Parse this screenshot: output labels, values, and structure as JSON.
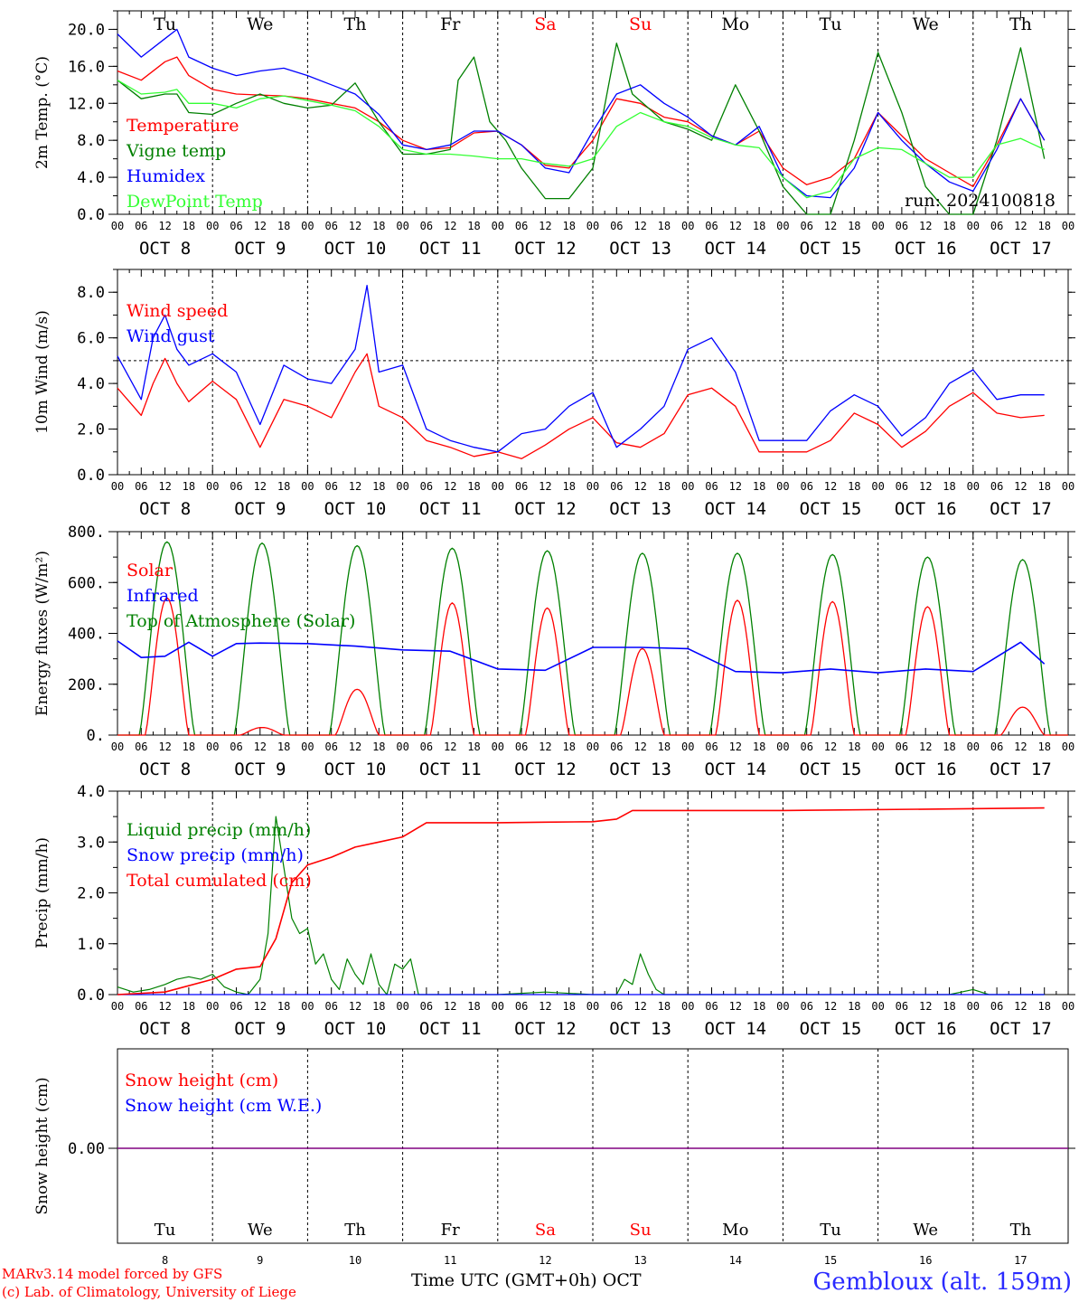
{
  "chart_data": [
    {
      "type": "line",
      "panel": "temperature",
      "ylabel": "2m Temp. (°C)",
      "ylim": [
        0,
        22
      ],
      "yticks": [
        "0.0",
        "4.0",
        "8.0",
        "12.0",
        "16.0",
        "20.0"
      ],
      "ytick_values": [
        0,
        4,
        8,
        12,
        16,
        20
      ],
      "x_unit": "hours from 2024-10-08 00 UTC",
      "annotation": "run: 2024100818",
      "series": [
        {
          "name": "Temperature",
          "color": "#ff0000",
          "x": [
            0,
            6,
            12,
            15,
            18,
            24,
            30,
            36,
            42,
            48,
            54,
            60,
            66,
            72,
            78,
            84,
            90,
            96,
            102,
            108,
            114,
            120,
            126,
            132,
            138,
            144,
            150,
            156,
            162,
            168,
            174,
            180,
            186,
            192,
            198,
            204,
            210,
            216,
            222,
            228,
            234
          ],
          "y": [
            15.5,
            14.5,
            16.5,
            17,
            15,
            13.5,
            13,
            12.9,
            12.8,
            12.5,
            12,
            11.5,
            10,
            8,
            7,
            7.2,
            8.8,
            9,
            7.5,
            5.3,
            5,
            8,
            12.5,
            12,
            10.5,
            10,
            8.5,
            7.5,
            9,
            5,
            3.2,
            4,
            6,
            11,
            8.5,
            6,
            4.5,
            3.0,
            7.5,
            12.5,
            8
          ]
        },
        {
          "name": "Vigne temp",
          "color": "#008000",
          "x": [
            0,
            6,
            12,
            15,
            18,
            24,
            30,
            36,
            42,
            48,
            54,
            60,
            66,
            72,
            78,
            84,
            86,
            90,
            94,
            98,
            102,
            108,
            114,
            120,
            126,
            130,
            138,
            144,
            150,
            156,
            162,
            168,
            174,
            180,
            186,
            192,
            198,
            204,
            210,
            216,
            222,
            228,
            234
          ],
          "y": [
            14.5,
            12.5,
            13,
            13,
            11,
            10.8,
            12,
            13,
            12,
            11.5,
            11.8,
            14.2,
            10,
            6.5,
            6.5,
            7,
            14.5,
            17,
            10,
            8,
            5,
            1.7,
            1.7,
            5,
            18.5,
            13,
            10,
            9.2,
            8,
            14,
            9,
            3,
            0,
            0,
            8,
            17.5,
            11,
            3,
            0,
            0,
            8,
            18,
            6
          ]
        },
        {
          "name": "Humidex",
          "color": "#0000ff",
          "x": [
            0,
            6,
            12,
            15,
            18,
            24,
            30,
            36,
            42,
            48,
            54,
            60,
            66,
            72,
            78,
            84,
            90,
            96,
            102,
            108,
            114,
            120,
            126,
            132,
            138,
            144,
            150,
            156,
            162,
            168,
            174,
            180,
            186,
            192,
            198,
            204,
            210,
            216,
            222,
            228,
            234
          ],
          "y": [
            19.5,
            17,
            19,
            20,
            17,
            15.8,
            15,
            15.5,
            15.8,
            15,
            14,
            13,
            10.8,
            7.5,
            7,
            7.5,
            9,
            9,
            7.5,
            5,
            4.5,
            9,
            13,
            14,
            12,
            10.5,
            8.5,
            7.5,
            9.5,
            4,
            2,
            1.8,
            5,
            11,
            8,
            5.5,
            3.5,
            2.5,
            7,
            12.5,
            8
          ]
        },
        {
          "name": "DewPoint Temp",
          "color": "#33ff33",
          "x": [
            0,
            6,
            12,
            15,
            18,
            24,
            30,
            36,
            42,
            48,
            54,
            60,
            66,
            72,
            78,
            84,
            90,
            96,
            102,
            108,
            114,
            120,
            126,
            132,
            138,
            144,
            150,
            156,
            162,
            168,
            174,
            180,
            186,
            192,
            198,
            204,
            210,
            216,
            222,
            228,
            234
          ],
          "y": [
            14.5,
            13,
            13.2,
            13.5,
            12,
            12,
            11.5,
            12.5,
            12.8,
            12.3,
            11.8,
            11.2,
            9.5,
            7,
            6.5,
            6.5,
            6.3,
            6,
            6,
            5.5,
            5.2,
            6,
            9.5,
            11,
            10,
            9.5,
            8.3,
            7.5,
            7.2,
            4,
            1.8,
            2.5,
            6,
            7.2,
            7,
            5.5,
            4,
            4,
            7.5,
            8.2,
            7
          ]
        }
      ]
    },
    {
      "type": "line",
      "panel": "wind",
      "ylabel": "10m Wind (m/s)",
      "ylim": [
        0,
        9
      ],
      "yticks": [
        "0.0",
        "2.0",
        "4.0",
        "6.0",
        "8.0"
      ],
      "ytick_values": [
        0,
        2,
        4,
        6,
        8
      ],
      "reference_line": 5,
      "series": [
        {
          "name": "Wind speed",
          "color": "#ff0000",
          "x": [
            0,
            6,
            9,
            12,
            15,
            18,
            24,
            30,
            36,
            42,
            48,
            54,
            60,
            63,
            66,
            72,
            78,
            84,
            90,
            96,
            102,
            108,
            114,
            120,
            126,
            132,
            138,
            144,
            150,
            156,
            162,
            168,
            174,
            180,
            186,
            192,
            198,
            204,
            210,
            216,
            222,
            228,
            234
          ],
          "y": [
            3.8,
            2.6,
            4,
            5.1,
            4,
            3.2,
            4.1,
            3.3,
            1.2,
            3.3,
            3,
            2.5,
            4.5,
            5.3,
            3,
            2.5,
            1.5,
            1.2,
            0.8,
            1.0,
            0.7,
            1.3,
            2.0,
            2.5,
            1.4,
            1.2,
            1.8,
            3.5,
            3.8,
            3.0,
            1.0,
            1.0,
            1.0,
            1.5,
            2.7,
            2.2,
            1.2,
            1.9,
            3.0,
            3.6,
            2.7,
            2.5,
            2.6
          ]
        },
        {
          "name": "Wind gust",
          "color": "#0000ff",
          "x": [
            0,
            6,
            9,
            12,
            15,
            18,
            24,
            30,
            36,
            42,
            48,
            54,
            60,
            63,
            66,
            72,
            78,
            84,
            90,
            96,
            102,
            108,
            114,
            120,
            126,
            132,
            138,
            144,
            150,
            156,
            162,
            168,
            174,
            180,
            186,
            192,
            198,
            204,
            210,
            216,
            222,
            228,
            234
          ],
          "y": [
            5.2,
            3.3,
            6,
            7,
            5.5,
            4.8,
            5.3,
            4.5,
            2.2,
            4.8,
            4.2,
            4,
            5.5,
            8.3,
            4.5,
            4.8,
            2.0,
            1.5,
            1.2,
            1.0,
            1.8,
            2.0,
            3.0,
            3.6,
            1.2,
            2.0,
            3.0,
            5.5,
            6.0,
            4.5,
            1.5,
            1.5,
            1.5,
            2.8,
            3.5,
            3.0,
            1.7,
            2.5,
            4.0,
            4.6,
            3.3,
            3.5,
            3.5
          ]
        }
      ]
    },
    {
      "type": "line",
      "panel": "energy",
      "ylabel": "Energy fluxes (W/m²)",
      "ylim": [
        0,
        800
      ],
      "yticks": [
        "0.",
        "200.",
        "400.",
        "600.",
        "800."
      ],
      "ytick_values": [
        0,
        200,
        400,
        600,
        800
      ],
      "solar_peaks": [
        540,
        30,
        180,
        520,
        500,
        340,
        530,
        525,
        505,
        110
      ],
      "toa_peaks": [
        760,
        755,
        745,
        735,
        725,
        715,
        715,
        710,
        700,
        690
      ],
      "series": [
        {
          "name": "Solar",
          "color": "#ff0000"
        },
        {
          "name": "Infrared",
          "color": "#0000ff",
          "x": [
            0,
            6,
            12,
            18,
            24,
            30,
            36,
            48,
            60,
            72,
            84,
            96,
            108,
            120,
            132,
            144,
            156,
            168,
            180,
            192,
            204,
            216,
            228,
            234
          ],
          "y": [
            370,
            305,
            310,
            365,
            310,
            360,
            362,
            360,
            350,
            335,
            330,
            260,
            255,
            345,
            345,
            340,
            250,
            245,
            260,
            245,
            260,
            250,
            365,
            280
          ]
        },
        {
          "name": "Top of Atmosphere (Solar)",
          "color": "#008000"
        }
      ]
    },
    {
      "type": "line",
      "panel": "precip",
      "ylabel": "Precip (mm/h)",
      "ylim": [
        0,
        4
      ],
      "yticks": [
        "0.0",
        "1.0",
        "2.0",
        "3.0",
        "4.0"
      ],
      "ytick_values": [
        0,
        1,
        2,
        3,
        4
      ],
      "series": [
        {
          "name": "Liquid precip (mm/h)",
          "color": "#008000",
          "x": [
            0,
            4,
            8,
            12,
            15,
            18,
            21,
            24,
            27,
            30,
            33,
            36,
            38,
            40,
            42,
            44,
            46,
            48,
            50,
            52,
            54,
            56,
            58,
            60,
            62,
            64,
            66,
            68,
            70,
            72,
            74,
            76,
            78,
            80,
            96,
            108,
            120,
            126,
            128,
            130,
            132,
            134,
            136,
            138,
            140,
            142,
            144,
            168,
            210,
            216,
            220,
            234
          ],
          "y": [
            0.15,
            0.05,
            0.1,
            0.2,
            0.3,
            0.35,
            0.3,
            0.4,
            0.15,
            0.05,
            0.0,
            0.3,
            1.2,
            3.5,
            2.5,
            1.5,
            1.2,
            1.3,
            0.6,
            0.8,
            0.3,
            0.1,
            0.7,
            0.4,
            0.2,
            0.8,
            0.2,
            0.0,
            0.6,
            0.5,
            0.7,
            0.0,
            0.0,
            0.0,
            0.0,
            0.05,
            0.0,
            0.0,
            0.3,
            0.2,
            0.8,
            0.4,
            0.1,
            0.0,
            0.0,
            0.0,
            0.0,
            0.0,
            0.0,
            0.1,
            0.0,
            0.0
          ]
        },
        {
          "name": "Snow precip (mm/h)",
          "color": "#0000ff",
          "x": [
            0,
            234
          ],
          "y": [
            0,
            0
          ]
        },
        {
          "name": "Total cumulated (cm)",
          "color": "#ff0000",
          "x": [
            0,
            12,
            24,
            30,
            36,
            40,
            44,
            48,
            54,
            60,
            66,
            72,
            78,
            96,
            108,
            120,
            126,
            130,
            132,
            144,
            168,
            210,
            234
          ],
          "y": [
            0.0,
            0.05,
            0.3,
            0.5,
            0.55,
            1.1,
            2.2,
            2.55,
            2.7,
            2.9,
            3.0,
            3.1,
            3.38,
            3.38,
            3.39,
            3.4,
            3.45,
            3.62,
            3.62,
            3.62,
            3.62,
            3.65,
            3.67
          ]
        }
      ]
    },
    {
      "type": "line",
      "panel": "snow",
      "ylabel": "Snow height (cm)",
      "yticks": [
        "0.00"
      ],
      "series": [
        {
          "name": "Snow height (cm)",
          "color": "#ff0000",
          "x": [
            0,
            234
          ],
          "y": [
            0,
            0
          ]
        },
        {
          "name": "Snow height (cm W.E.)",
          "color": "#0000ff",
          "x": [
            0,
            234
          ],
          "y": [
            0,
            0
          ]
        }
      ]
    }
  ],
  "axis": {
    "days": [
      "Tu",
      "We",
      "Th",
      "Fr",
      "Sa",
      "Su",
      "Mo",
      "Tu",
      "We",
      "Th"
    ],
    "weekend_color": "#ff0000",
    "weekend_index": [
      4,
      5
    ],
    "dates": [
      "OCT  8",
      "OCT  9",
      "OCT 10",
      "OCT 11",
      "OCT 12",
      "OCT 13",
      "OCT 14",
      "OCT 15",
      "OCT 16",
      "OCT 17"
    ],
    "day_numbers": [
      "8",
      "9",
      "10",
      "11",
      "12",
      "13",
      "14",
      "15",
      "16",
      "17"
    ],
    "hour_labels": [
      "00",
      "06",
      "12",
      "18"
    ],
    "final_hour_label": "00",
    "xlabel": "Time UTC (GMT+0h)",
    "month": "OCT"
  },
  "footer": {
    "model_line": "MARv3.14 model forced by GFS",
    "credit_line": "(c) Lab. of Climatology, University of Liege",
    "station": "Gembloux (alt. 159m)"
  }
}
